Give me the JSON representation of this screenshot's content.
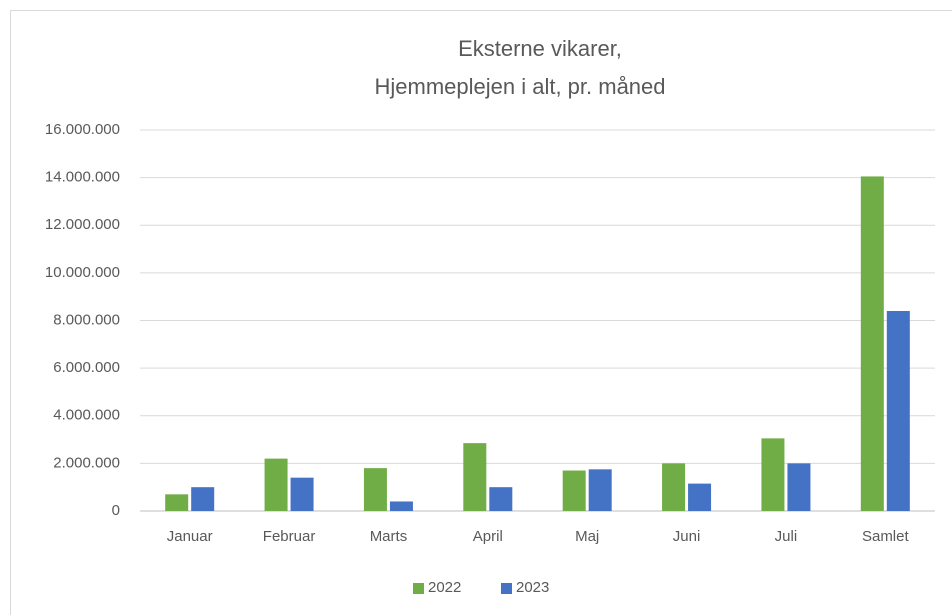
{
  "chart_data": {
    "type": "bar",
    "title": [
      "Eksterne vikarer,",
      "Hjemmeplejen i alt, pr. måned"
    ],
    "categories": [
      "Januar",
      "Februar",
      "Marts",
      "April",
      "Maj",
      "Juni",
      "Juli",
      "Samlet"
    ],
    "series": [
      {
        "name": "2022",
        "color": "#70ad47",
        "values": [
          700000,
          2200000,
          1800000,
          2850000,
          1700000,
          2000000,
          3050000,
          14050000
        ]
      },
      {
        "name": "2023",
        "color": "#4472c4",
        "values": [
          1000000,
          1400000,
          400000,
          1000000,
          1750000,
          1150000,
          2000000,
          8400000
        ]
      }
    ],
    "ylim": [
      0,
      16000000
    ],
    "yticks": [
      0,
      {
        "value": 2000000,
        "label": "2.000.000"
      },
      {
        "value": 4000000,
        "label": "4.000.000"
      },
      {
        "value": 6000000,
        "label": "6.000.000"
      },
      {
        "value": 8000000,
        "label": "8.000.000"
      },
      {
        "value": 10000000,
        "label": "10.000.000"
      },
      {
        "value": 12000000,
        "label": "12.000.000"
      },
      {
        "value": 14000000,
        "label": "14.000.000"
      },
      {
        "value": 16000000,
        "label": "16.000.000"
      }
    ],
    "grid": true,
    "legend": "bottom"
  }
}
